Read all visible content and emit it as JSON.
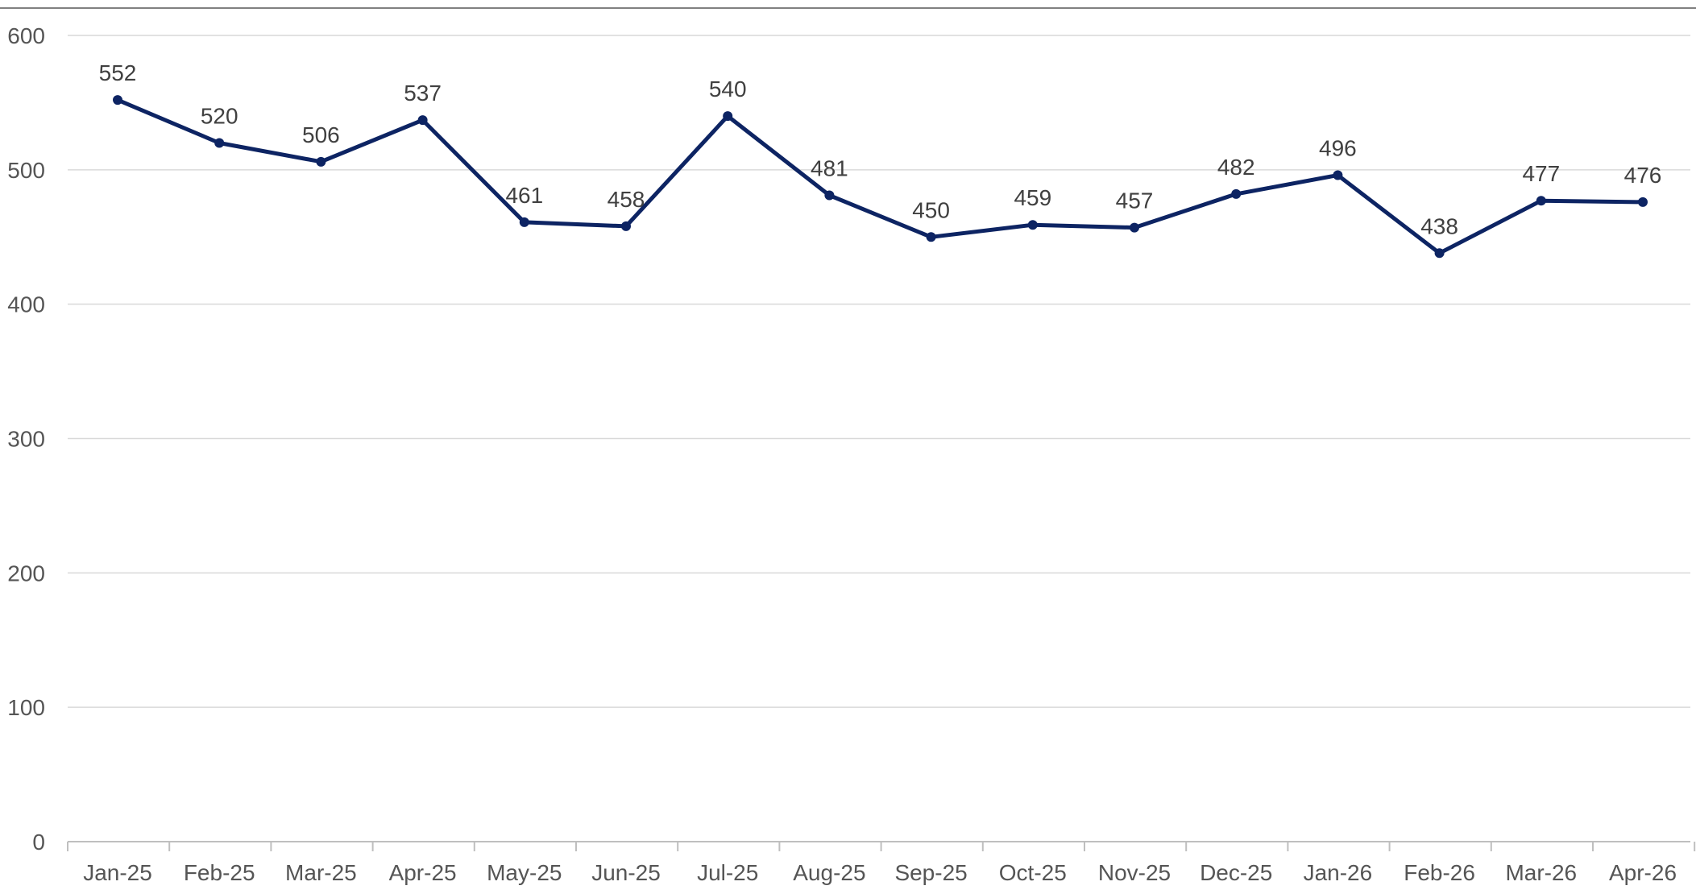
{
  "chart_data": {
    "type": "line",
    "title": "",
    "xlabel": "",
    "ylabel": "",
    "categories": [
      "Jan-25",
      "Feb-25",
      "Mar-25",
      "Apr-25",
      "May-25",
      "Jun-25",
      "Jul-25",
      "Aug-25",
      "Sep-25",
      "Oct-25",
      "Nov-25",
      "Dec-25",
      "Jan-26",
      "Feb-26",
      "Mar-26",
      "Apr-26"
    ],
    "series": [
      {
        "values": [
          552,
          520,
          506,
          537,
          461,
          458,
          540,
          481,
          450,
          459,
          457,
          482,
          496,
          438,
          477,
          476
        ],
        "color": "#0d2463"
      }
    ],
    "data_labels": [
      "552",
      "520",
      "506",
      "537",
      "461",
      "458",
      "540",
      "481",
      "450",
      "459",
      "457",
      "482",
      "496",
      "438",
      "477",
      "476"
    ],
    "ylim": [
      0,
      600
    ],
    "yticks": [
      0,
      100,
      200,
      300,
      400,
      500,
      600
    ],
    "ytick_labels": [
      "0",
      "100",
      "200",
      "300",
      "400",
      "500",
      "600"
    ],
    "grid": true,
    "legend": "none",
    "colors": {
      "line": "#0d2463",
      "grid": "#d9d9d9",
      "axis": "#bfbfbf",
      "tick_text": "#555555",
      "label_text": "#404040"
    }
  }
}
